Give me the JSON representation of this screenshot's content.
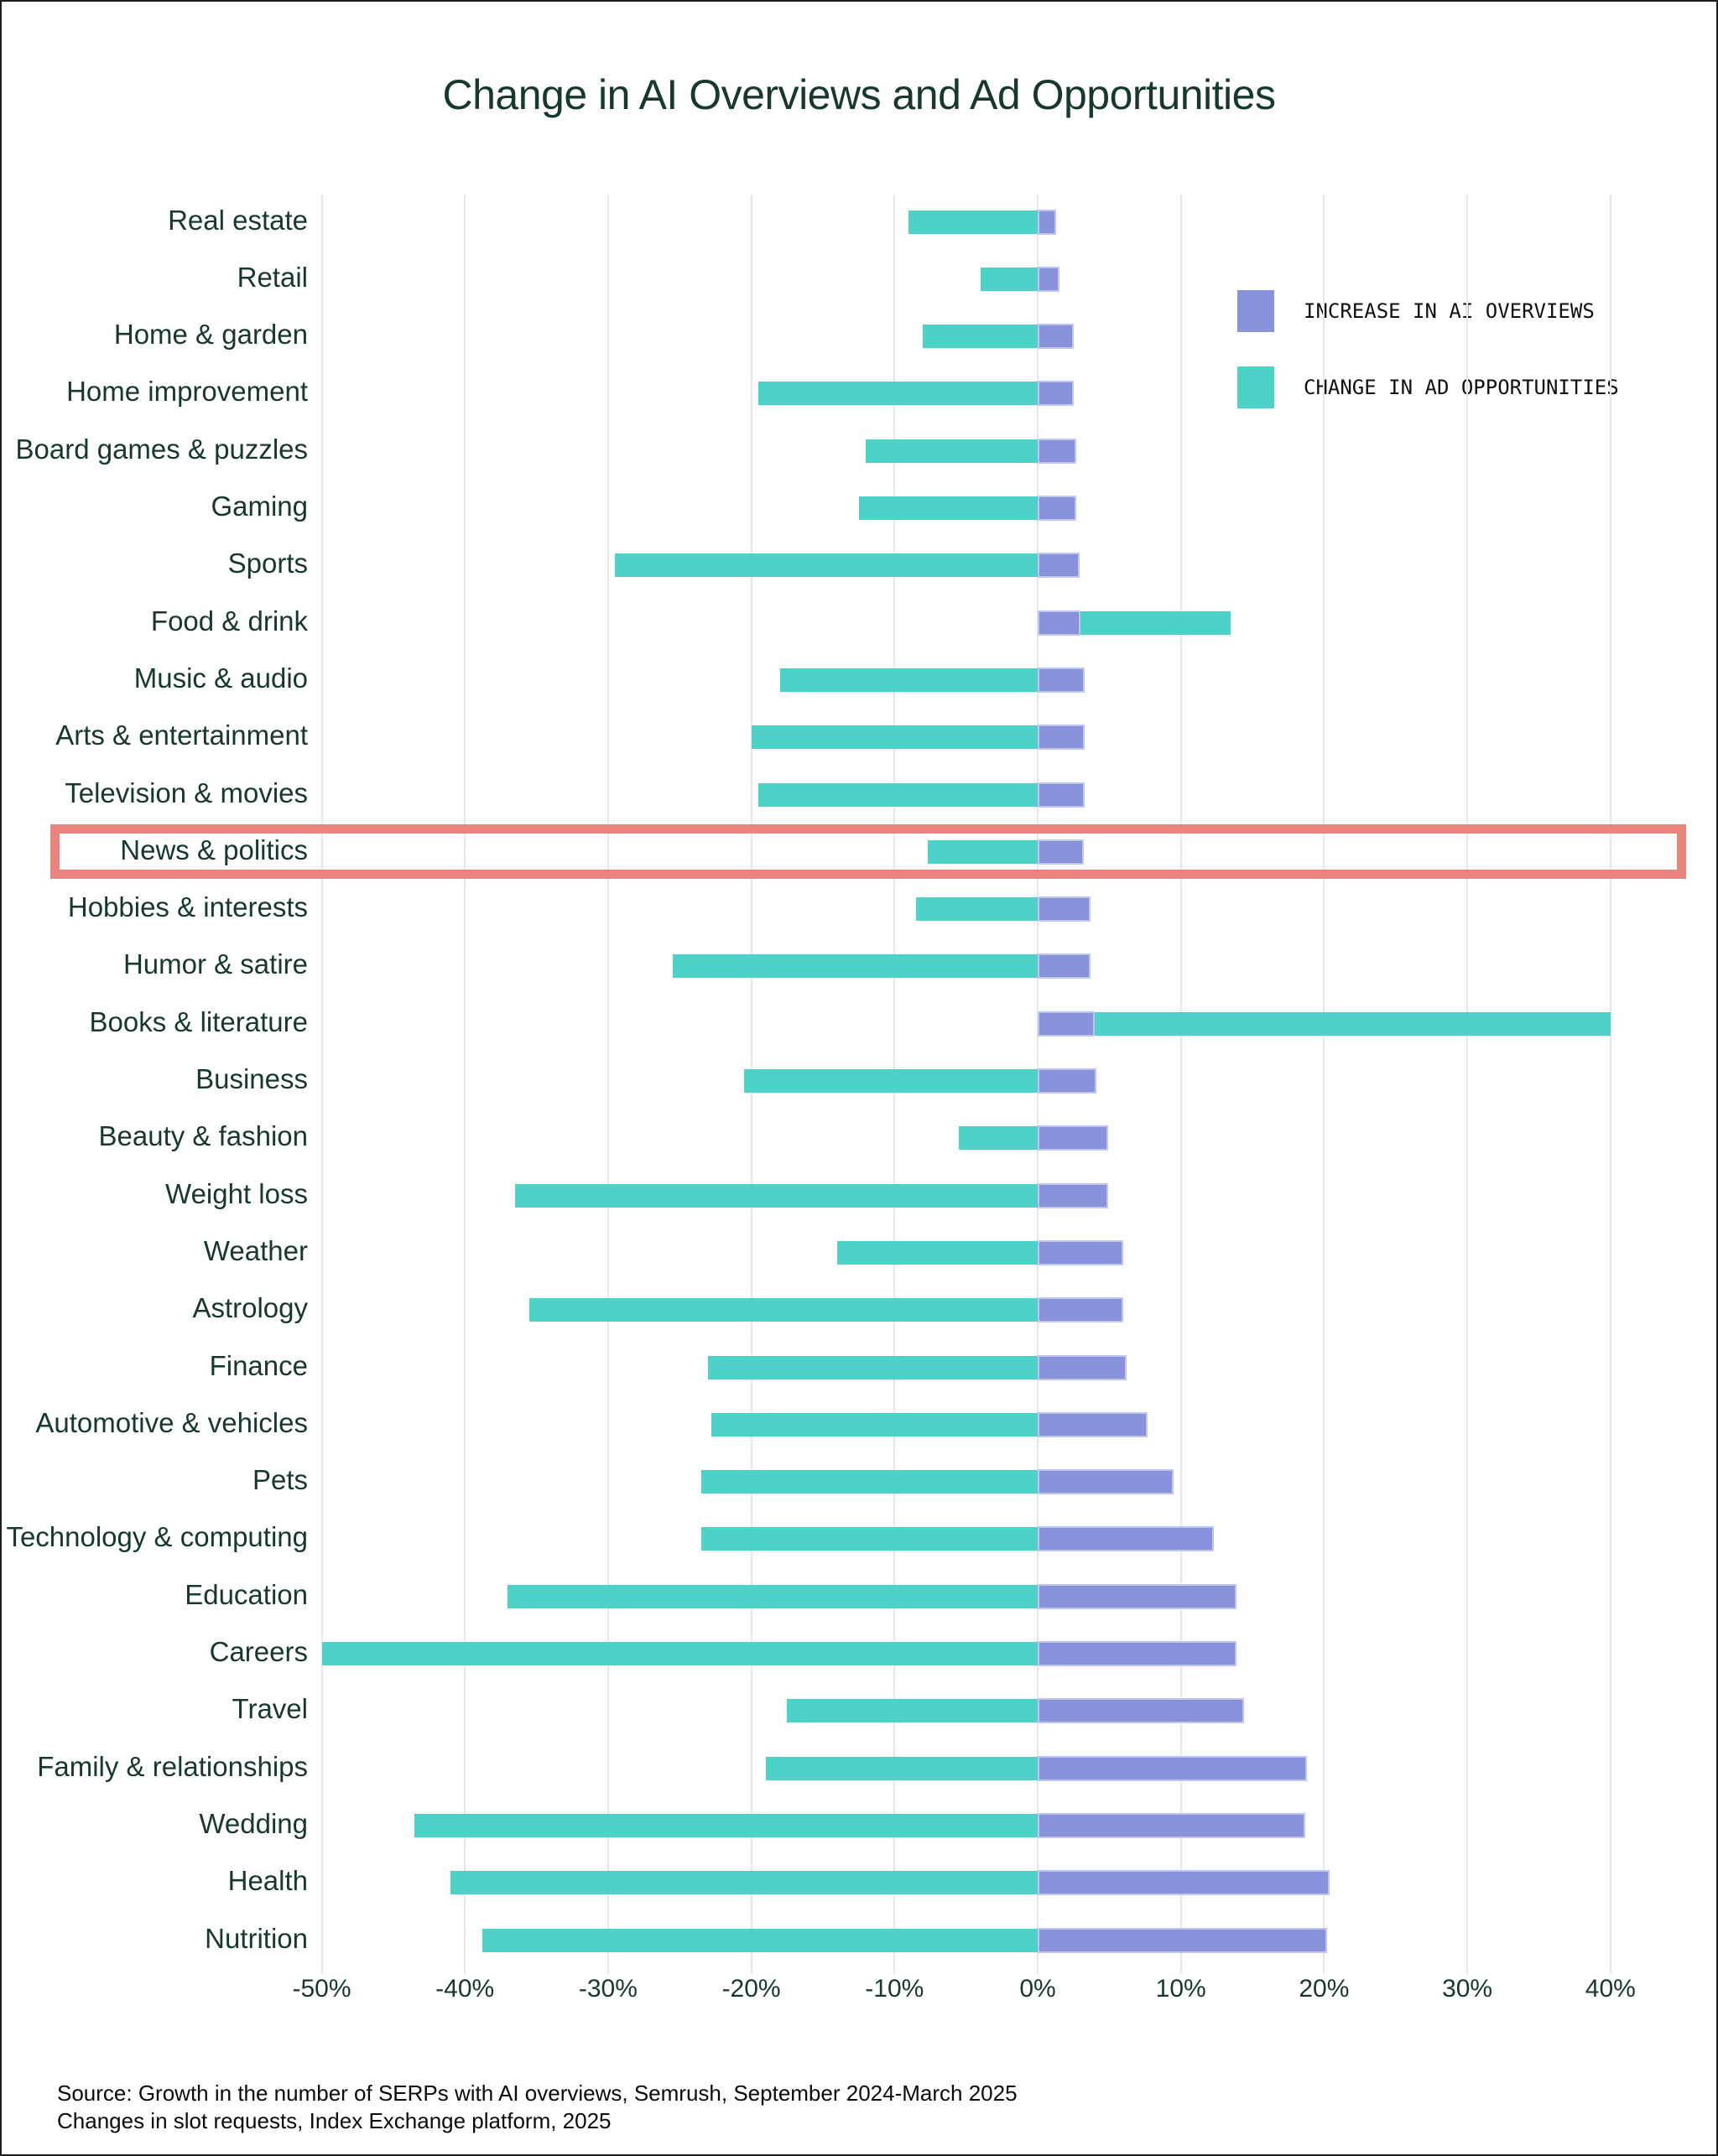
{
  "title": "Change in AI Overviews and Ad Opportunities",
  "legend": [
    {
      "label": "INCREASE IN AI OVERVIEWS",
      "color": "#8893DB",
      "series": "increase_in_ai_overviews"
    },
    {
      "label": "CHANGE IN AD OPPORTUNITIES",
      "color": "#4DD2C8",
      "series": "change_in_ad_opportunities"
    }
  ],
  "highlight": {
    "category": "News & politics",
    "color": "#E8837D"
  },
  "source_lines": [
    "Source: Growth in the number of SERPs with AI overviews, Semrush, September 2024-March 2025",
    "Changes in slot requests, Index Exchange platform, 2025"
  ],
  "colors": {
    "purple_bar": "#8893DB",
    "purple_bar_edge": "#bfc6f2",
    "teal_bar": "#4DD2C8",
    "highlight_border": "#E8837D",
    "text_green": "#17382F",
    "gridline": "#e7e7e7",
    "legend_text": "#101010",
    "background": "#ffffff",
    "frame_border": "#1e1e1e"
  },
  "chart_data": {
    "type": "bar",
    "orientation": "horizontal",
    "unit": "percent",
    "title": "Change in AI Overviews and Ad Opportunities",
    "xlabel": "",
    "ylabel": "",
    "xlim": [
      -50,
      40
    ],
    "grid": true,
    "legend_position": "upper right",
    "x_ticks": [
      {
        "label": "-50%",
        "value": -50
      },
      {
        "label": "-40%",
        "value": -40
      },
      {
        "label": "-30%",
        "value": -30
      },
      {
        "label": "-20%",
        "value": -20
      },
      {
        "label": "-10%",
        "value": -10
      },
      {
        "label": "0%",
        "value": 0
      },
      {
        "label": "10%",
        "value": 10
      },
      {
        "label": "20%",
        "value": 20
      },
      {
        "label": "30%",
        "value": 30
      },
      {
        "label": "40%",
        "value": 40
      }
    ],
    "categories": [
      "Real estate",
      "Retail",
      "Home & garden",
      "Home improvement",
      "Board games & puzzles",
      "Gaming",
      "Sports",
      "Food & drink",
      "Music & audio",
      "Arts & entertainment",
      "Television & movies",
      "News & politics",
      "Hobbies & interests",
      "Humor & satire",
      "Books & literature",
      "Business",
      "Beauty & fashion",
      "Weight loss",
      "Weather",
      "Astrology",
      "Finance",
      "Automotive & vehicles",
      "Pets",
      "Technology & computing",
      "Education",
      "Careers",
      "Travel",
      "Family & relationships",
      "Wedding",
      "Health",
      "Nutrition"
    ],
    "series": [
      {
        "name": "Increase in AI overviews",
        "color": "#8893DB",
        "values": [
          1.3,
          1.5,
          2.5,
          2.5,
          2.7,
          2.7,
          2.9,
          3.0,
          3.3,
          3.3,
          3.3,
          3.2,
          3.7,
          3.7,
          4.0,
          4.1,
          4.9,
          4.9,
          6.0,
          6.0,
          6.2,
          7.7,
          9.5,
          12.3,
          13.9,
          13.9,
          14.4,
          18.8,
          18.7,
          20.4,
          20.2
        ]
      },
      {
        "name": "Change in ad opportunities",
        "color": "#4DD2C8",
        "values": [
          -9.0,
          -4.0,
          -8.0,
          -19.5,
          -12.0,
          -12.5,
          -29.5,
          13.5,
          -18.0,
          -20.0,
          -19.5,
          -7.7,
          -8.5,
          -25.5,
          40.0,
          -20.5,
          -5.5,
          -36.5,
          -14.0,
          -35.5,
          -23.0,
          -22.8,
          -23.5,
          -23.5,
          -37.0,
          -50.0,
          -17.5,
          -19.0,
          -43.5,
          -41.0,
          -38.8
        ]
      }
    ]
  }
}
